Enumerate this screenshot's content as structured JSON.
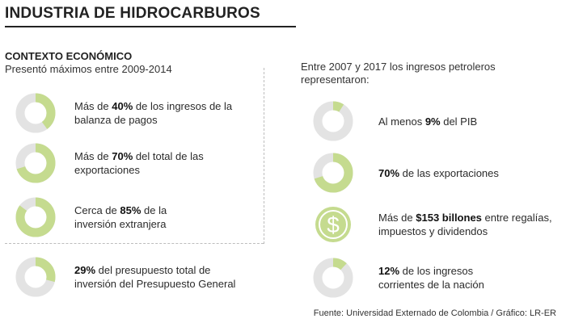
{
  "title": "INDUSTRIA DE HIDROCARBUROS",
  "left": {
    "heading": "CONTEXTO ECONÓMICO",
    "subheading": "Presentó máximos entre 2009-2014"
  },
  "right": {
    "heading": "Entre 2007 y 2017 los ingresos petroleros representaron:"
  },
  "source": "Fuente: Universidad Externado de Colombia / Gráfico: LR-ER",
  "colors": {
    "fill": "#c5db8f",
    "track": "#e3e3e3",
    "icon_circle": "#c5db8f",
    "icon_stroke": "#7ea83a"
  },
  "icons": {
    "dollar": "dollar-sign-icon"
  },
  "chart_data": [
    {
      "type": "pie",
      "title": "",
      "items": [
        {
          "pre": "Más de ",
          "bold": "40%",
          "post": " de los ingresos de la balanza de pagos",
          "value": 40
        },
        {
          "pre": "Más de ",
          "bold": "70%",
          "post": " del total de las exportaciones",
          "value": 70
        },
        {
          "pre": "Cerca de ",
          "bold": "85%",
          "post": " de la inversión extranjera",
          "value": 85
        },
        {
          "pre": "",
          "bold": "29%",
          "post": " del presupuesto total de inversión del Presupuesto General",
          "value": 29
        }
      ]
    },
    {
      "type": "pie",
      "title": "",
      "items": [
        {
          "pre": "Al menos ",
          "bold": "9%",
          "post": " del PIB",
          "value": 9
        },
        {
          "pre": "",
          "bold": "70%",
          "post": " de las exportaciones",
          "value": 70
        },
        {
          "pre": "Más de ",
          "bold": "$153 billones",
          "post": " entre regalías, impuestos y dividendos",
          "value": null,
          "icon": "dollar"
        },
        {
          "pre": "",
          "bold": "12%",
          "post": " de los ingresos corrientes de la nación",
          "value": 12
        }
      ]
    }
  ]
}
